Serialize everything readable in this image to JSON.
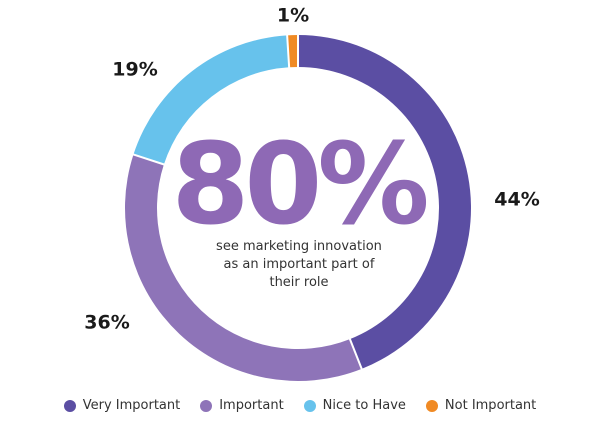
{
  "chart_data": {
    "type": "pie",
    "categories": [
      "Very Important",
      "Important",
      "Nice to Have",
      "Not Important"
    ],
    "values": [
      44,
      36,
      19,
      1
    ],
    "labels": [
      "44%",
      "36%",
      "19%",
      "1%"
    ],
    "colors": [
      "#5b4ea3",
      "#8e74b8",
      "#67c2ec",
      "#f08a24"
    ],
    "center_value": "80%",
    "center_text": [
      "see marketing innovation",
      "as an important part of",
      "their role"
    ],
    "legend_position": "bottom"
  }
}
